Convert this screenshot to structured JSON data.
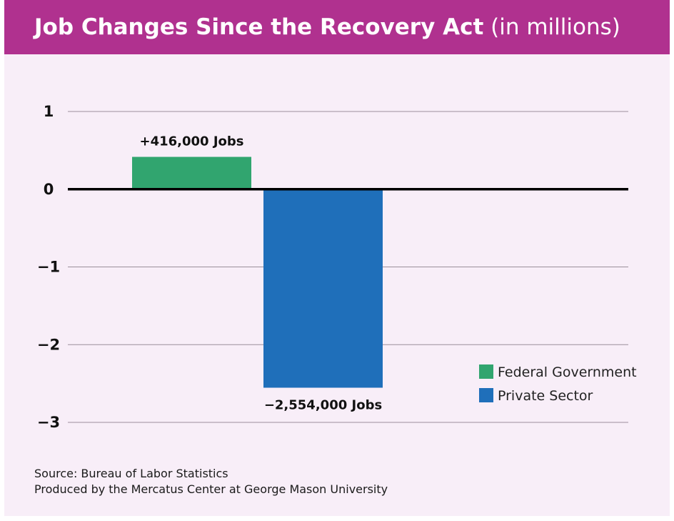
{
  "title": "Job Changes Since the Recovery Act",
  "title_suffix": "(in millions)",
  "colors": {
    "header": "#b0318f",
    "background": "#f8eef8",
    "federal": "#31a56f",
    "private": "#1f6fba"
  },
  "chart_data": {
    "type": "bar",
    "categories": [
      "Federal Government",
      "Private Sector"
    ],
    "values": [
      0.416,
      -2.554
    ],
    "data_labels": [
      "+416,000 Jobs",
      "−2,554,000 Jobs"
    ],
    "ylim": [
      -3,
      1
    ],
    "yticks": [
      1,
      0,
      -1,
      -2,
      -3
    ],
    "ytick_labels": [
      "1",
      "0",
      "−1",
      "−2",
      "−3"
    ],
    "grid": true,
    "legend": {
      "position": "right",
      "entries": [
        {
          "label": "Federal Government",
          "color": "#31a56f"
        },
        {
          "label": "Private Sector",
          "color": "#1f6fba"
        }
      ]
    }
  },
  "source_line": "Source: Bureau of Labor Statistics",
  "produced_line": "Produced by the Mercatus Center at George Mason University"
}
